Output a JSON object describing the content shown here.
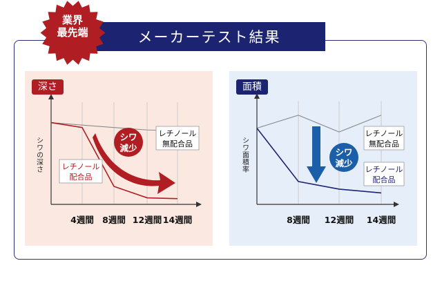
{
  "header": {
    "title": "メーカーテスト結果",
    "badge_line1": "業界",
    "badge_line2": "最先端"
  },
  "colors": {
    "navy": "#1c2370",
    "red": "#b01e23",
    "gray": "#8a8a8a",
    "blue_arrow": "#1a5fa8"
  },
  "chart_data": [
    {
      "type": "line",
      "panel_label": "深さ",
      "ylabel": "シワの深さ",
      "categories": [
        "",
        "4週間",
        "8週間",
        "12週間",
        "14週間"
      ],
      "series": [
        {
          "name": "レチノール配合品",
          "values": [
            100,
            94,
            22,
            8,
            7
          ]
        },
        {
          "name": "レチノール無配合品",
          "values": [
            100,
            97,
            94,
            91,
            90
          ]
        }
      ],
      "annotations": [
        "シワ",
        "減少"
      ],
      "label_lines": {
        "treated": [
          "レチノール",
          "配合品"
        ],
        "untreated": [
          "レチノール",
          "無配合品"
        ]
      },
      "ylim": [
        0,
        125
      ]
    },
    {
      "type": "line",
      "panel_label": "面積",
      "ylabel": "シワ面積率",
      "categories": [
        "",
        "8週間",
        "12週間",
        "14週間"
      ],
      "series": [
        {
          "name": "レチノール配合品",
          "values": [
            100,
            30,
            20,
            15
          ]
        },
        {
          "name": "レチノール無配合品",
          "values": [
            100,
            117,
            95,
            117
          ]
        }
      ],
      "annotations": [
        "シワ",
        "減少"
      ],
      "label_lines": {
        "treated": [
          "レチノール",
          "配合品"
        ],
        "untreated": [
          "レチノール",
          "無配合品"
        ]
      },
      "ylim": [
        0,
        135
      ]
    }
  ]
}
